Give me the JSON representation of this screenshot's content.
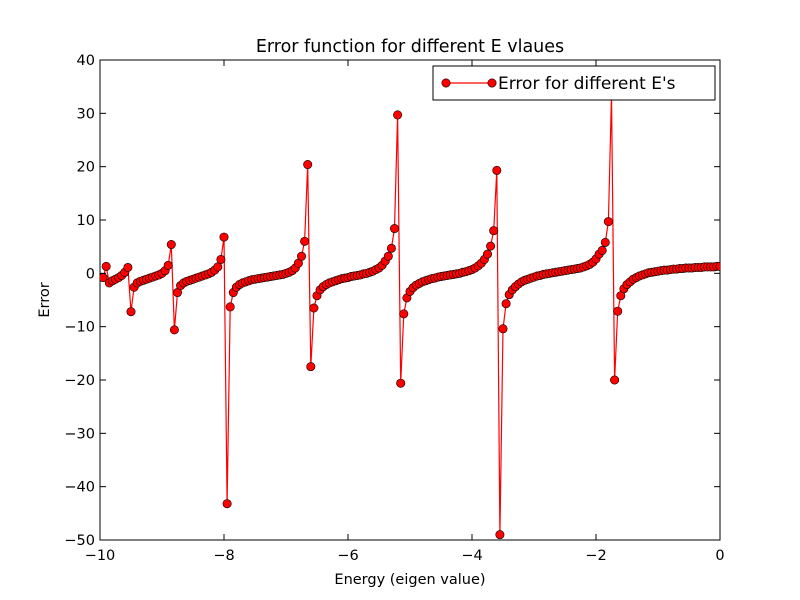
{
  "chart_data": {
    "type": "line",
    "title": "Error function for different E vlaues",
    "xlabel": "Energy (eigen value)",
    "ylabel": "Error",
    "xlim": [
      -10,
      0
    ],
    "ylim": [
      -50,
      40
    ],
    "xticks": [
      -10,
      -8,
      -6,
      -4,
      -2,
      0
    ],
    "yticks": [
      -50,
      -40,
      -30,
      -20,
      -10,
      0,
      10,
      20,
      30,
      40
    ],
    "grid": false,
    "legend_position": "top-right",
    "series": [
      {
        "name": "Error for different E's",
        "color": "#ff0000",
        "marker": "circle",
        "points": [
          [
            -9.95,
            -0.8
          ],
          [
            -9.9,
            1.3
          ],
          [
            -9.85,
            -1.8
          ],
          [
            -9.8,
            -1.4
          ],
          [
            -9.75,
            -1.1
          ],
          [
            -9.7,
            -0.8
          ],
          [
            -9.65,
            -0.4
          ],
          [
            -9.6,
            0.2
          ],
          [
            -9.55,
            1.1
          ],
          [
            -9.5,
            -7.2
          ],
          [
            -9.45,
            -2.6
          ],
          [
            -9.4,
            -1.8
          ],
          [
            -9.35,
            -1.5
          ],
          [
            -9.3,
            -1.3
          ],
          [
            -9.25,
            -1.1
          ],
          [
            -9.2,
            -0.9
          ],
          [
            -9.15,
            -0.7
          ],
          [
            -9.1,
            -0.5
          ],
          [
            -9.05,
            -0.3
          ],
          [
            -9.0,
            0.0
          ],
          [
            -8.95,
            0.5
          ],
          [
            -8.9,
            1.5
          ],
          [
            -8.85,
            5.4
          ],
          [
            -8.8,
            -10.6
          ],
          [
            -8.75,
            -3.6
          ],
          [
            -8.7,
            -2.3
          ],
          [
            -8.65,
            -1.8
          ],
          [
            -8.6,
            -1.5
          ],
          [
            -8.55,
            -1.3
          ],
          [
            -8.5,
            -1.1
          ],
          [
            -8.45,
            -0.9
          ],
          [
            -8.4,
            -0.7
          ],
          [
            -8.35,
            -0.5
          ],
          [
            -8.3,
            -0.3
          ],
          [
            -8.25,
            -0.1
          ],
          [
            -8.2,
            0.2
          ],
          [
            -8.15,
            0.6
          ],
          [
            -8.1,
            1.2
          ],
          [
            -8.05,
            2.6
          ],
          [
            -8.0,
            6.8
          ],
          [
            -7.95,
            -43.2
          ],
          [
            -7.9,
            -6.3
          ],
          [
            -7.85,
            -3.6
          ],
          [
            -7.8,
            -2.6
          ],
          [
            -7.75,
            -2.1
          ],
          [
            -7.7,
            -1.8
          ],
          [
            -7.65,
            -1.6
          ],
          [
            -7.6,
            -1.4
          ],
          [
            -7.55,
            -1.2
          ],
          [
            -7.5,
            -1.1
          ],
          [
            -7.45,
            -1.0
          ],
          [
            -7.4,
            -0.9
          ],
          [
            -7.35,
            -0.8
          ],
          [
            -7.3,
            -0.7
          ],
          [
            -7.25,
            -0.6
          ],
          [
            -7.2,
            -0.5
          ],
          [
            -7.15,
            -0.4
          ],
          [
            -7.1,
            -0.3
          ],
          [
            -7.05,
            -0.2
          ],
          [
            -7.0,
            0.0
          ],
          [
            -6.95,
            0.2
          ],
          [
            -6.9,
            0.5
          ],
          [
            -6.85,
            1.0
          ],
          [
            -6.8,
            1.9
          ],
          [
            -6.75,
            3.2
          ],
          [
            -6.7,
            6.0
          ],
          [
            -6.65,
            20.4
          ],
          [
            -6.6,
            -17.5
          ],
          [
            -6.55,
            -6.5
          ],
          [
            -6.5,
            -4.2
          ],
          [
            -6.45,
            -3.1
          ],
          [
            -6.4,
            -2.5
          ],
          [
            -6.35,
            -2.1
          ],
          [
            -6.3,
            -1.8
          ],
          [
            -6.25,
            -1.6
          ],
          [
            -6.2,
            -1.4
          ],
          [
            -6.15,
            -1.2
          ],
          [
            -6.1,
            -1.0
          ],
          [
            -6.05,
            -0.9
          ],
          [
            -6.0,
            -0.8
          ],
          [
            -5.95,
            -0.6
          ],
          [
            -5.9,
            -0.5
          ],
          [
            -5.85,
            -0.4
          ],
          [
            -5.8,
            -0.3
          ],
          [
            -5.75,
            -0.1
          ],
          [
            -5.7,
            0.0
          ],
          [
            -5.65,
            0.2
          ],
          [
            -5.6,
            0.4
          ],
          [
            -5.55,
            0.7
          ],
          [
            -5.5,
            1.0
          ],
          [
            -5.45,
            1.5
          ],
          [
            -5.4,
            2.3
          ],
          [
            -5.35,
            3.2
          ],
          [
            -5.3,
            4.7
          ],
          [
            -5.25,
            8.4
          ],
          [
            -5.2,
            29.7
          ],
          [
            -5.15,
            -20.6
          ],
          [
            -5.1,
            -7.6
          ],
          [
            -5.05,
            -4.6
          ],
          [
            -5.0,
            -3.4
          ],
          [
            -4.95,
            -2.7
          ],
          [
            -4.9,
            -2.2
          ],
          [
            -4.85,
            -1.9
          ],
          [
            -4.8,
            -1.6
          ],
          [
            -4.75,
            -1.4
          ],
          [
            -4.7,
            -1.2
          ],
          [
            -4.65,
            -1.0
          ],
          [
            -4.6,
            -0.9
          ],
          [
            -4.55,
            -0.7
          ],
          [
            -4.5,
            -0.6
          ],
          [
            -4.45,
            -0.5
          ],
          [
            -4.4,
            -0.4
          ],
          [
            -4.35,
            -0.3
          ],
          [
            -4.3,
            -0.2
          ],
          [
            -4.25,
            -0.1
          ],
          [
            -4.2,
            0.0
          ],
          [
            -4.15,
            0.2
          ],
          [
            -4.1,
            0.3
          ],
          [
            -4.05,
            0.5
          ],
          [
            -4.0,
            0.7
          ],
          [
            -3.95,
            1.0
          ],
          [
            -3.9,
            1.4
          ],
          [
            -3.85,
            1.9
          ],
          [
            -3.8,
            2.6
          ],
          [
            -3.75,
            3.6
          ],
          [
            -3.7,
            5.1
          ],
          [
            -3.65,
            8.0
          ],
          [
            -3.6,
            19.3
          ],
          [
            -3.55,
            -49.0
          ],
          [
            -3.5,
            -10.4
          ],
          [
            -3.45,
            -5.7
          ],
          [
            -3.4,
            -4.0
          ],
          [
            -3.35,
            -3.1
          ],
          [
            -3.3,
            -2.5
          ],
          [
            -3.25,
            -2.0
          ],
          [
            -3.2,
            -1.6
          ],
          [
            -3.15,
            -1.3
          ],
          [
            -3.1,
            -1.1
          ],
          [
            -3.05,
            -0.9
          ],
          [
            -3.0,
            -0.7
          ],
          [
            -2.95,
            -0.5
          ],
          [
            -2.9,
            -0.4
          ],
          [
            -2.85,
            -0.2
          ],
          [
            -2.8,
            -0.1
          ],
          [
            -2.75,
            0.0
          ],
          [
            -2.7,
            0.1
          ],
          [
            -2.65,
            0.2
          ],
          [
            -2.6,
            0.3
          ],
          [
            -2.55,
            0.4
          ],
          [
            -2.5,
            0.5
          ],
          [
            -2.45,
            0.6
          ],
          [
            -2.4,
            0.7
          ],
          [
            -2.35,
            0.8
          ],
          [
            -2.3,
            0.9
          ],
          [
            -2.25,
            1.0
          ],
          [
            -2.2,
            1.2
          ],
          [
            -2.15,
            1.4
          ],
          [
            -2.1,
            1.7
          ],
          [
            -2.05,
            2.1
          ],
          [
            -2.0,
            2.7
          ],
          [
            -1.95,
            3.6
          ],
          [
            -1.9,
            4.3
          ],
          [
            -1.85,
            5.8
          ],
          [
            -1.8,
            9.7
          ],
          [
            -1.75,
            33.5
          ],
          [
            -1.7,
            -20.0
          ],
          [
            -1.65,
            -7.1
          ],
          [
            -1.6,
            -4.2
          ],
          [
            -1.55,
            -2.9
          ],
          [
            -1.5,
            -2.1
          ],
          [
            -1.45,
            -1.6
          ],
          [
            -1.4,
            -1.1
          ],
          [
            -1.35,
            -0.8
          ],
          [
            -1.3,
            -0.5
          ],
          [
            -1.25,
            -0.3
          ],
          [
            -1.2,
            -0.1
          ],
          [
            -1.15,
            0.1
          ],
          [
            -1.1,
            0.2
          ],
          [
            -1.05,
            0.3
          ],
          [
            -1.0,
            0.4
          ],
          [
            -0.95,
            0.5
          ],
          [
            -0.9,
            0.6
          ],
          [
            -0.85,
            0.6
          ],
          [
            -0.8,
            0.7
          ],
          [
            -0.75,
            0.8
          ],
          [
            -0.7,
            0.8
          ],
          [
            -0.65,
            0.9
          ],
          [
            -0.6,
            0.9
          ],
          [
            -0.55,
            1.0
          ],
          [
            -0.5,
            1.0
          ],
          [
            -0.45,
            1.0
          ],
          [
            -0.4,
            1.1
          ],
          [
            -0.35,
            1.1
          ],
          [
            -0.3,
            1.1
          ],
          [
            -0.25,
            1.2
          ],
          [
            -0.2,
            1.2
          ],
          [
            -0.15,
            1.2
          ],
          [
            -0.1,
            1.2
          ],
          [
            -0.05,
            1.3
          ],
          [
            0.0,
            1.3
          ]
        ]
      }
    ]
  }
}
